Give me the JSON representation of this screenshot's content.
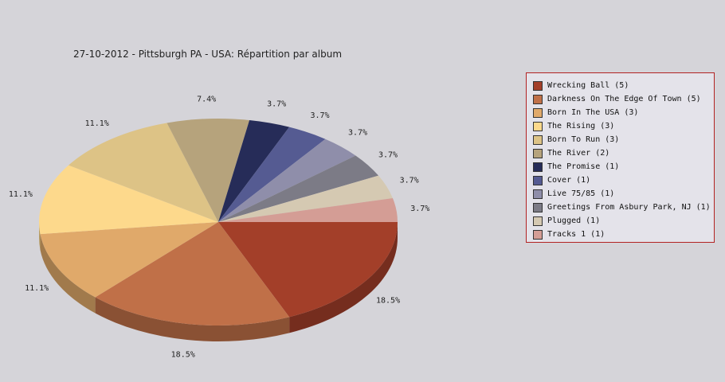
{
  "chart_data": {
    "type": "pie",
    "title": "27-10-2012 - Pittsburgh PA - USA:  Répartition par album",
    "style": "3d",
    "legend_position": "right",
    "slices": [
      {
        "name": "Wrecking Ball (5)",
        "value": 5,
        "label": "18.5%",
        "color": "#a33f29"
      },
      {
        "name": "Darkness On The Edge Of Town (5)",
        "value": 5,
        "label": "18.5%",
        "color": "#c07048"
      },
      {
        "name": "Born In The USA (3)",
        "value": 3,
        "label": "11.1%",
        "color": "#e0a96a"
      },
      {
        "name": "The Rising (3)",
        "value": 3,
        "label": "11.1%",
        "color": "#fdd98c"
      },
      {
        "name": "Born To Run (3)",
        "value": 3,
        "label": "11.1%",
        "color": "#ddc386"
      },
      {
        "name": "The River (2)",
        "value": 2,
        "label": "7.4%",
        "color": "#b6a37c"
      },
      {
        "name": "The Promise (1)",
        "value": 1,
        "label": "3.7%",
        "color": "#262c58"
      },
      {
        "name": "Cover (1)",
        "value": 1,
        "label": "3.7%",
        "color": "#555b92"
      },
      {
        "name": "Live 75/85 (1)",
        "value": 1,
        "label": "3.7%",
        "color": "#8f8eaa"
      },
      {
        "name": "Greetings From Asbury Park, NJ (1)",
        "value": 1,
        "label": "3.7%",
        "color": "#7c7b86"
      },
      {
        "name": "Plugged (1)",
        "value": 1,
        "label": "3.7%",
        "color": "#d5c9b2"
      },
      {
        "name": "Tracks 1 (1)",
        "value": 1,
        "label": "3.7%",
        "color": "#d49d95"
      }
    ]
  }
}
